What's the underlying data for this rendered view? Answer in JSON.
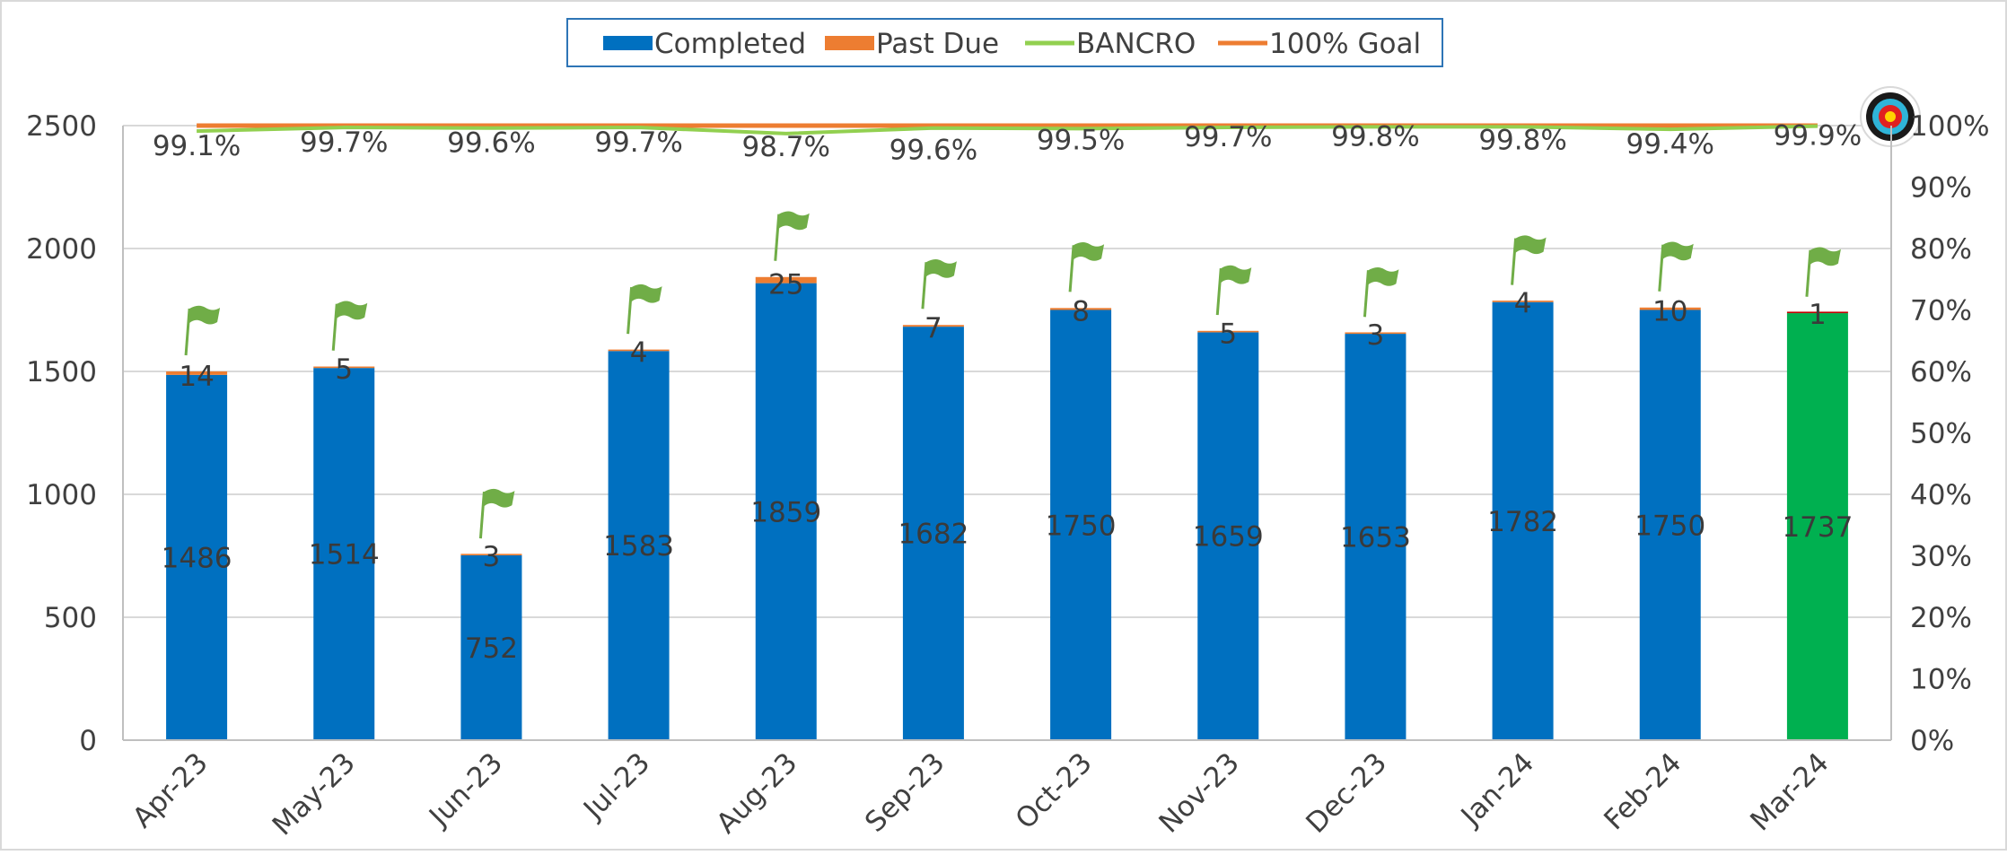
{
  "chart_data": {
    "type": "bar",
    "stacked": true,
    "categories": [
      "Apr-23",
      "May-23",
      "Jun-23",
      "Jul-23",
      "Aug-23",
      "Sep-23",
      "Oct-23",
      "Nov-23",
      "Dec-23",
      "Jan-24",
      "Feb-24",
      "Mar-24"
    ],
    "series": [
      {
        "name": "Completed",
        "type": "bar",
        "axis": "left",
        "color": "#0070C0",
        "highlight_color": "#00B050",
        "highlight_index": 11,
        "values": [
          1486,
          1514,
          752,
          1583,
          1859,
          1682,
          1750,
          1659,
          1653,
          1782,
          1750,
          1737
        ],
        "labels": [
          "1486",
          "1514",
          "752",
          "1583",
          "1859",
          "1682",
          "1750",
          "1659",
          "1653",
          "1782",
          "1750",
          "1737"
        ]
      },
      {
        "name": "Past Due",
        "type": "bar",
        "axis": "left",
        "color": "#ED7D31",
        "highlight_color": "#C00000",
        "highlight_index": 11,
        "values": [
          14,
          5,
          3,
          4,
          25,
          7,
          8,
          5,
          3,
          4,
          10,
          1
        ],
        "labels": [
          "14",
          "5",
          "3",
          "4",
          "25",
          "7",
          "8",
          "5",
          "3",
          "4",
          "10",
          "1"
        ]
      },
      {
        "name": "BANCRO",
        "type": "line",
        "axis": "right",
        "color": "#92D050",
        "values": [
          0.991,
          0.997,
          0.996,
          0.997,
          0.987,
          0.996,
          0.995,
          0.997,
          0.998,
          0.998,
          0.994,
          0.999
        ],
        "labels": [
          "99.1%",
          "99.7%",
          "99.6%",
          "99.7%",
          "98.7%",
          "99.6%",
          "99.5%",
          "99.7%",
          "99.8%",
          "99.8%",
          "99.4%",
          "99.9%"
        ]
      },
      {
        "name": "100% Goal",
        "type": "line",
        "axis": "right",
        "color": "#ED7D31",
        "values": [
          1,
          1,
          1,
          1,
          1,
          1,
          1,
          1,
          1,
          1,
          1,
          1
        ]
      }
    ],
    "left_axis": {
      "min": 0,
      "max": 2500,
      "ticks": [
        "0",
        "500",
        "1000",
        "1500",
        "2000",
        "2500"
      ]
    },
    "right_axis": {
      "min": 0,
      "max": 1,
      "ticks": [
        "0%",
        "10%",
        "20%",
        "30%",
        "40%",
        "50%",
        "60%",
        "70%",
        "80%",
        "90%",
        "100%"
      ]
    },
    "grid": true,
    "legend": {
      "position": "top",
      "items": [
        "Completed",
        "Past Due",
        "BANCRO",
        "100% Goal"
      ]
    },
    "markers": {
      "flag_icon": "flag-icon",
      "goal_icon": "target-icon"
    }
  }
}
